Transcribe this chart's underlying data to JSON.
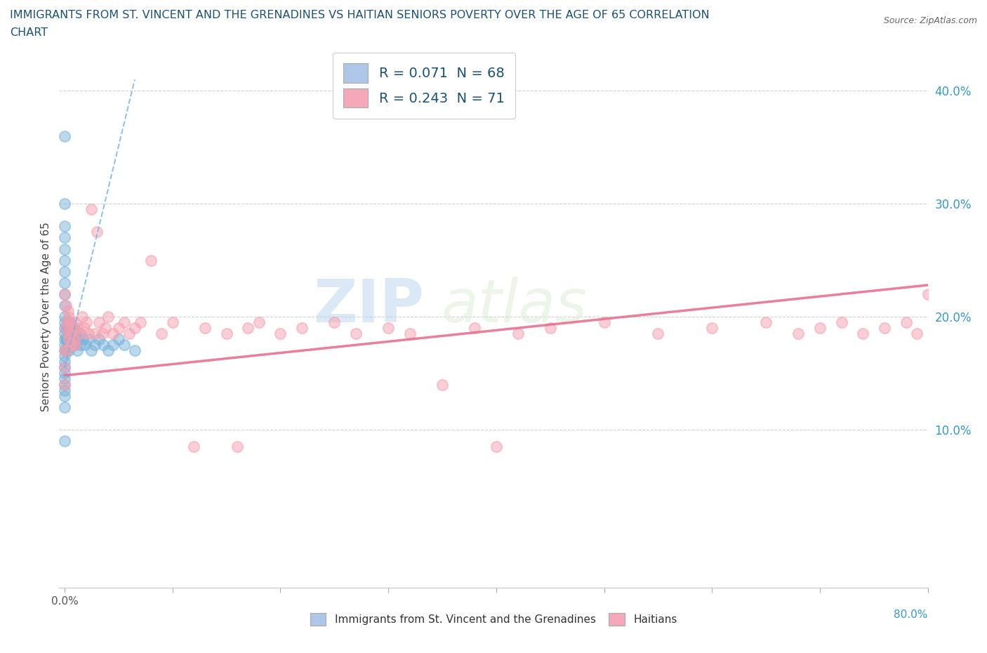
{
  "title_line1": "IMMIGRANTS FROM ST. VINCENT AND THE GRENADINES VS HAITIAN SENIORS POVERTY OVER THE AGE OF 65 CORRELATION",
  "title_line2": "CHART",
  "source": "Source: ZipAtlas.com",
  "ylabel": "Seniors Poverty Over the Age of 65",
  "y_tick_labels": [
    "10.0%",
    "20.0%",
    "30.0%",
    "40.0%"
  ],
  "y_tick_values": [
    0.1,
    0.2,
    0.3,
    0.4
  ],
  "xlim": [
    -0.005,
    0.8
  ],
  "ylim": [
    -0.04,
    0.44
  ],
  "legend_r1": "R = 0.071  N = 68",
  "legend_r2": "R = 0.243  N = 71",
  "legend_color1": "#aec6e8",
  "legend_color2": "#f4a8b8",
  "watermark_zip": "ZIP",
  "watermark_atlas": "atlas",
  "dot_color_blue": "#7ab3d9",
  "dot_color_pink": "#f4a0b0",
  "line_color_blue": "#7ab3d9",
  "line_color_pink": "#e87090",
  "title_color": "#1a5276",
  "axis_label_color": "#3399cc",
  "legend_text_color": "#1a5276",
  "blue_scatter_x": [
    0.0,
    0.0,
    0.0,
    0.0,
    0.0,
    0.0,
    0.0,
    0.0,
    0.0,
    0.0,
    0.0,
    0.0,
    0.0,
    0.0,
    0.0,
    0.0,
    0.0,
    0.0,
    0.0,
    0.0,
    0.0,
    0.0,
    0.0,
    0.0,
    0.0,
    0.0,
    0.0,
    0.001,
    0.001,
    0.001,
    0.002,
    0.002,
    0.002,
    0.003,
    0.003,
    0.003,
    0.004,
    0.004,
    0.004,
    0.005,
    0.005,
    0.005,
    0.006,
    0.006,
    0.007,
    0.007,
    0.008,
    0.008,
    0.009,
    0.009,
    0.01,
    0.01,
    0.012,
    0.012,
    0.014,
    0.015,
    0.017,
    0.019,
    0.022,
    0.025,
    0.028,
    0.032,
    0.036,
    0.04,
    0.045,
    0.05,
    0.055,
    0.065
  ],
  "blue_scatter_y": [
    0.36,
    0.3,
    0.28,
    0.27,
    0.26,
    0.25,
    0.24,
    0.23,
    0.22,
    0.21,
    0.2,
    0.195,
    0.19,
    0.185,
    0.18,
    0.175,
    0.17,
    0.165,
    0.16,
    0.155,
    0.15,
    0.145,
    0.14,
    0.135,
    0.13,
    0.12,
    0.09,
    0.19,
    0.18,
    0.17,
    0.19,
    0.18,
    0.17,
    0.195,
    0.185,
    0.175,
    0.19,
    0.18,
    0.17,
    0.195,
    0.185,
    0.175,
    0.185,
    0.175,
    0.19,
    0.18,
    0.185,
    0.175,
    0.19,
    0.18,
    0.185,
    0.175,
    0.18,
    0.17,
    0.185,
    0.175,
    0.18,
    0.175,
    0.18,
    0.17,
    0.175,
    0.18,
    0.175,
    0.17,
    0.175,
    0.18,
    0.175,
    0.17
  ],
  "pink_scatter_x": [
    0.0,
    0.0,
    0.0,
    0.0,
    0.001,
    0.001,
    0.002,
    0.002,
    0.003,
    0.003,
    0.004,
    0.004,
    0.005,
    0.005,
    0.006,
    0.007,
    0.008,
    0.009,
    0.01,
    0.01,
    0.012,
    0.014,
    0.016,
    0.018,
    0.02,
    0.022,
    0.025,
    0.028,
    0.03,
    0.032,
    0.035,
    0.038,
    0.04,
    0.045,
    0.05,
    0.055,
    0.06,
    0.065,
    0.07,
    0.08,
    0.09,
    0.1,
    0.12,
    0.13,
    0.15,
    0.16,
    0.17,
    0.18,
    0.2,
    0.22,
    0.25,
    0.27,
    0.3,
    0.32,
    0.35,
    0.38,
    0.4,
    0.42,
    0.45,
    0.5,
    0.55,
    0.6,
    0.65,
    0.68,
    0.7,
    0.72,
    0.74,
    0.76,
    0.78,
    0.79,
    0.8
  ],
  "pink_scatter_y": [
    0.22,
    0.17,
    0.155,
    0.14,
    0.21,
    0.19,
    0.195,
    0.17,
    0.205,
    0.185,
    0.2,
    0.18,
    0.195,
    0.175,
    0.185,
    0.175,
    0.19,
    0.18,
    0.195,
    0.175,
    0.19,
    0.185,
    0.2,
    0.19,
    0.195,
    0.185,
    0.295,
    0.185,
    0.275,
    0.195,
    0.185,
    0.19,
    0.2,
    0.185,
    0.19,
    0.195,
    0.185,
    0.19,
    0.195,
    0.25,
    0.185,
    0.195,
    0.085,
    0.19,
    0.185,
    0.085,
    0.19,
    0.195,
    0.185,
    0.19,
    0.195,
    0.185,
    0.19,
    0.185,
    0.14,
    0.19,
    0.085,
    0.185,
    0.19,
    0.195,
    0.185,
    0.19,
    0.195,
    0.185,
    0.19,
    0.195,
    0.185,
    0.19,
    0.195,
    0.185,
    0.22
  ],
  "blue_trend_x": [
    0.0,
    0.065
  ],
  "blue_trend_y": [
    0.155,
    0.41
  ],
  "pink_trend_x": [
    0.0,
    0.8
  ],
  "pink_trend_y": [
    0.148,
    0.228
  ]
}
